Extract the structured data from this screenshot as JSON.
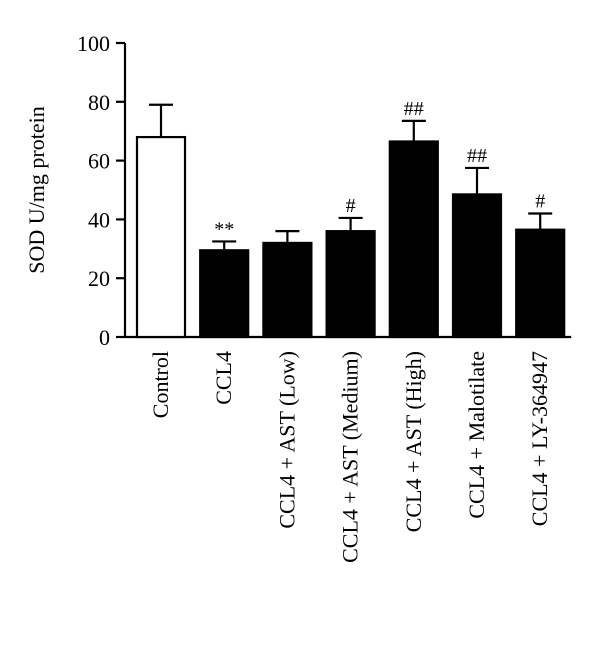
{
  "chart_data": {
    "type": "bar",
    "ylabel": "SOD U/mg protein",
    "xlabel": "",
    "ylim": [
      0,
      100
    ],
    "yticks": [
      0,
      20,
      40,
      60,
      80,
      100
    ],
    "grid": false,
    "categories": [
      "Control",
      "CCL4",
      "CCL4 + AST (Low)",
      "CCL4 + AST (Medium)",
      "CCL4 + AST (High)",
      "CCL4 + Malotilate",
      "CCL4 + LY-364947"
    ],
    "values": [
      68,
      29.5,
      32,
      36,
      66.5,
      48.5,
      36.5
    ],
    "errors": [
      11,
      3,
      4,
      4.5,
      7,
      9,
      5.5
    ],
    "significance": [
      "",
      "**",
      "",
      "#",
      "##",
      "##",
      "#"
    ],
    "colors": {
      "control_fill": "#ffffff",
      "treatment_fill": "#000000",
      "stroke": "#000000"
    }
  }
}
